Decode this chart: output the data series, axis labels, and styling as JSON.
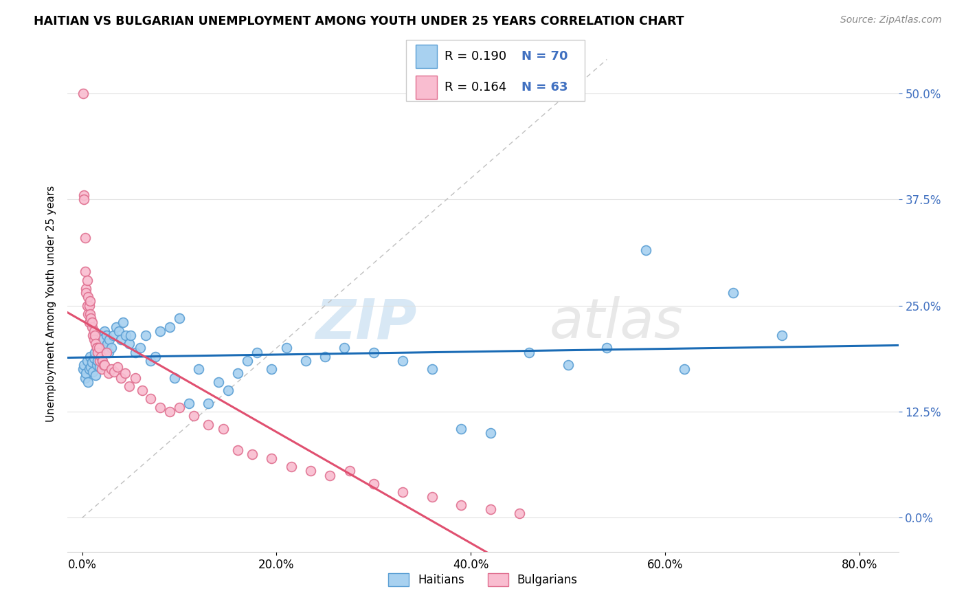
{
  "title": "HAITIAN VS BULGARIAN UNEMPLOYMENT AMONG YOUTH UNDER 25 YEARS CORRELATION CHART",
  "source": "Source: ZipAtlas.com",
  "xlabel_ticks": [
    "0.0%",
    "20.0%",
    "40.0%",
    "60.0%",
    "80.0%"
  ],
  "xlabel_tick_vals": [
    0.0,
    0.2,
    0.4,
    0.6,
    0.8
  ],
  "ylabel_ticks": [
    "0.0%",
    "12.5%",
    "25.0%",
    "37.5%",
    "50.0%"
  ],
  "ylabel_tick_vals": [
    0.0,
    0.125,
    0.25,
    0.375,
    0.5
  ],
  "ylabel": "Unemployment Among Youth under 25 years",
  "xlim": [
    -0.015,
    0.84
  ],
  "ylim": [
    -0.04,
    0.545
  ],
  "watermark_zip": "ZIP",
  "watermark_atlas": "atlas",
  "legend_R_haitian": "R = 0.190",
  "legend_N_haitian": "N = 70",
  "legend_R_bulgarian": "R = 0.164",
  "legend_N_bulgarian": "N = 63",
  "haitian_color": "#a8d1f0",
  "bulgarian_color": "#f9bdd0",
  "haitian_edge": "#5b9fd4",
  "bulgarian_edge": "#e07090",
  "trend_haitian_color": "#1a6bb5",
  "trend_bulgarian_color": "#e05070",
  "diagonal_color": "#c0c0c0",
  "grid_color": "#e0e0e0",
  "tick_color": "#4070c0",
  "haitian_x": [
    0.001,
    0.002,
    0.003,
    0.004,
    0.005,
    0.006,
    0.007,
    0.008,
    0.009,
    0.01,
    0.011,
    0.012,
    0.013,
    0.014,
    0.015,
    0.016,
    0.017,
    0.018,
    0.019,
    0.02,
    0.021,
    0.022,
    0.023,
    0.025,
    0.026,
    0.027,
    0.028,
    0.03,
    0.032,
    0.035,
    0.038,
    0.04,
    0.042,
    0.045,
    0.048,
    0.05,
    0.055,
    0.06,
    0.065,
    0.07,
    0.075,
    0.08,
    0.09,
    0.095,
    0.1,
    0.11,
    0.12,
    0.13,
    0.14,
    0.15,
    0.16,
    0.17,
    0.18,
    0.195,
    0.21,
    0.23,
    0.25,
    0.27,
    0.3,
    0.33,
    0.36,
    0.39,
    0.42,
    0.46,
    0.5,
    0.54,
    0.58,
    0.62,
    0.67,
    0.72
  ],
  "haitian_y": [
    0.175,
    0.18,
    0.165,
    0.17,
    0.185,
    0.16,
    0.175,
    0.19,
    0.178,
    0.183,
    0.172,
    0.188,
    0.195,
    0.168,
    0.18,
    0.185,
    0.192,
    0.178,
    0.2,
    0.185,
    0.21,
    0.198,
    0.22,
    0.215,
    0.205,
    0.195,
    0.21,
    0.2,
    0.215,
    0.225,
    0.22,
    0.21,
    0.23,
    0.215,
    0.205,
    0.215,
    0.195,
    0.2,
    0.215,
    0.185,
    0.19,
    0.22,
    0.225,
    0.165,
    0.235,
    0.135,
    0.175,
    0.135,
    0.16,
    0.15,
    0.17,
    0.185,
    0.195,
    0.175,
    0.2,
    0.185,
    0.19,
    0.2,
    0.195,
    0.185,
    0.175,
    0.105,
    0.1,
    0.195,
    0.18,
    0.2,
    0.315,
    0.175,
    0.265,
    0.215
  ],
  "bulgarian_x": [
    0.001,
    0.002,
    0.002,
    0.003,
    0.003,
    0.004,
    0.004,
    0.005,
    0.005,
    0.006,
    0.006,
    0.007,
    0.007,
    0.008,
    0.008,
    0.009,
    0.01,
    0.01,
    0.011,
    0.012,
    0.012,
    0.013,
    0.014,
    0.015,
    0.015,
    0.016,
    0.017,
    0.018,
    0.019,
    0.02,
    0.021,
    0.022,
    0.023,
    0.025,
    0.027,
    0.03,
    0.033,
    0.036,
    0.04,
    0.044,
    0.048,
    0.055,
    0.062,
    0.07,
    0.08,
    0.09,
    0.1,
    0.115,
    0.13,
    0.145,
    0.16,
    0.175,
    0.195,
    0.215,
    0.235,
    0.255,
    0.275,
    0.3,
    0.33,
    0.36,
    0.39,
    0.42,
    0.45
  ],
  "bulgarian_y": [
    0.5,
    0.38,
    0.375,
    0.33,
    0.29,
    0.27,
    0.265,
    0.28,
    0.25,
    0.26,
    0.24,
    0.25,
    0.23,
    0.255,
    0.24,
    0.235,
    0.225,
    0.23,
    0.215,
    0.22,
    0.21,
    0.215,
    0.205,
    0.2,
    0.2,
    0.195,
    0.2,
    0.185,
    0.19,
    0.175,
    0.185,
    0.18,
    0.18,
    0.195,
    0.17,
    0.175,
    0.172,
    0.178,
    0.165,
    0.17,
    0.155,
    0.165,
    0.15,
    0.14,
    0.13,
    0.125,
    0.13,
    0.12,
    0.11,
    0.105,
    0.08,
    0.075,
    0.07,
    0.06,
    0.055,
    0.05,
    0.055,
    0.04,
    0.03,
    0.025,
    0.015,
    0.01,
    0.005
  ]
}
